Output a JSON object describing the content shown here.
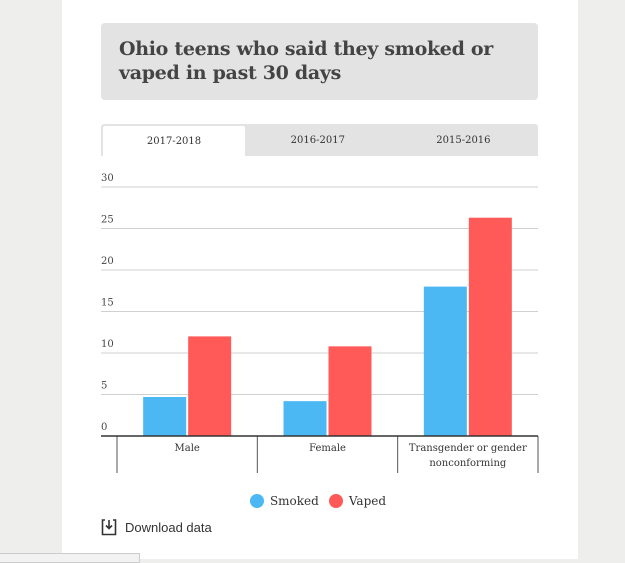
{
  "tabs": [
    {
      "label": "2017-2018",
      "active": true
    },
    {
      "label": "2016-2017",
      "active": false
    },
    {
      "label": "2015-2016",
      "active": false
    }
  ],
  "download_label": "Download data",
  "chart_data": {
    "type": "bar",
    "title": "Ohio teens who said they smoked or vaped in past 30 days",
    "categories": [
      "Male",
      "Female",
      "Transgender or gender nonconforming"
    ],
    "series": [
      {
        "name": "Smoked",
        "color": "#4bb8f4",
        "values": [
          4.7,
          4.2,
          18.0
        ]
      },
      {
        "name": "Vaped",
        "color": "#ff5a57",
        "values": [
          12.0,
          10.8,
          26.3
        ]
      }
    ],
    "ylim": [
      0,
      30
    ],
    "yticks": [
      "0",
      "5",
      "10",
      "15",
      "20",
      "25",
      "30"
    ],
    "grid": true,
    "legend": "bottom-center"
  }
}
